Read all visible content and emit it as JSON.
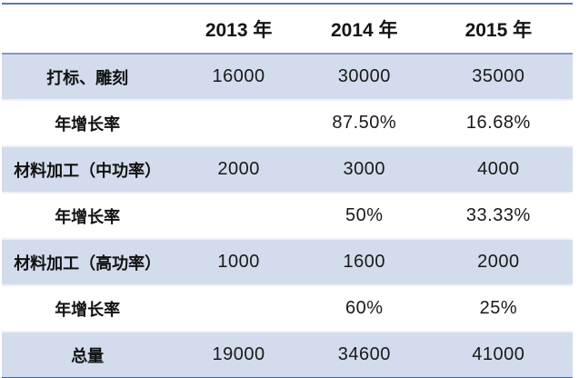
{
  "chart_data": {
    "type": "table",
    "columns": [
      "",
      "2013 年",
      "2014 年",
      "2015 年"
    ],
    "rows": [
      {
        "label": "打标、雕刻",
        "values": [
          "16000",
          "30000",
          "35000"
        ]
      },
      {
        "label": "年增长率",
        "values": [
          "",
          "87.50%",
          "16.68%"
        ]
      },
      {
        "label": "材料加工（中功率）",
        "values": [
          "2000",
          "3000",
          "4000"
        ]
      },
      {
        "label": "年增长率",
        "values": [
          "",
          "50%",
          "33.33%"
        ]
      },
      {
        "label": "材料加工（高功率）",
        "values": [
          "1000",
          "1600",
          "2000"
        ]
      },
      {
        "label": "年增长率",
        "values": [
          "",
          "60%",
          "25%"
        ]
      },
      {
        "label": "总量",
        "values": [
          "19000",
          "34600",
          "41000"
        ]
      }
    ],
    "layout": {
      "banded_row_indices": [
        0,
        2,
        4,
        6
      ],
      "grid": "horizontal-bands-only",
      "legend": "none"
    }
  },
  "colors": {
    "band_fill": "#d3dcec",
    "top_border": "#5b7aa9",
    "header_rule": "#8696c5",
    "bottom_border": "#44679c",
    "text": "#191919"
  }
}
